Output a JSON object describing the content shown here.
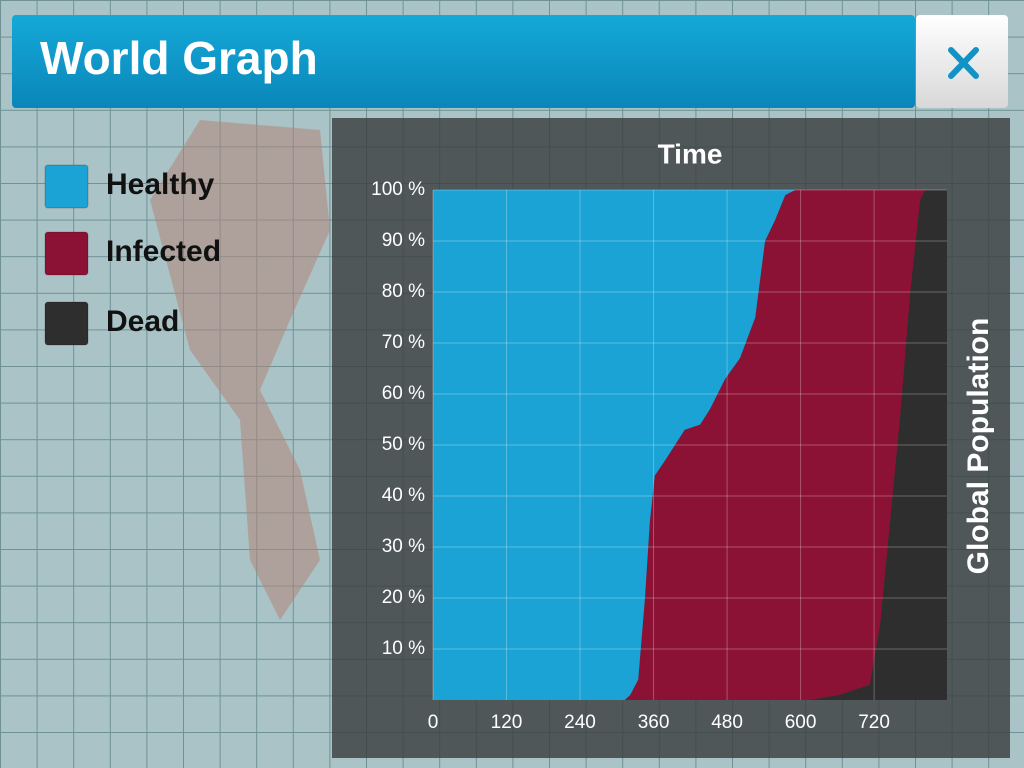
{
  "header": {
    "title": "World Graph"
  },
  "chart_data": {
    "type": "area",
    "stacked": true,
    "x_label": "Time",
    "y_label": "Global Population",
    "x": [
      0,
      313,
      322,
      335,
      346,
      354,
      362,
      379,
      395,
      411,
      436,
      452,
      477,
      501,
      526,
      542,
      558,
      575,
      591,
      615,
      664,
      713,
      730,
      746,
      762,
      779,
      795,
      803,
      839
    ],
    "series": [
      {
        "name": "Dead",
        "color": "#2e2e2e",
        "values": [
          0,
          0,
          0,
          0,
          0,
          0,
          0,
          0,
          0,
          0,
          0,
          0,
          0,
          0,
          0,
          0,
          0,
          0,
          0,
          0,
          1,
          3,
          15,
          35,
          55,
          80,
          98,
          100,
          100
        ]
      },
      {
        "name": "Infected",
        "color": "#8b1234",
        "values": [
          0,
          0,
          1,
          4,
          20,
          35,
          44,
          47,
          50,
          53,
          54,
          57,
          63,
          67,
          75,
          90,
          94,
          99,
          100,
          100,
          99,
          97,
          85,
          65,
          45,
          20,
          2,
          0,
          0
        ]
      },
      {
        "name": "Healthy",
        "color": "#1aa3d4",
        "values": [
          100,
          100,
          99,
          96,
          80,
          65,
          56,
          53,
          50,
          47,
          46,
          43,
          37,
          33,
          25,
          10,
          6,
          1,
          0,
          0,
          0,
          0,
          0,
          0,
          0,
          0,
          0,
          0,
          0
        ]
      }
    ],
    "legend_order": [
      "Healthy",
      "Infected",
      "Dead"
    ],
    "xlim": [
      0,
      839
    ],
    "xticks": [
      0,
      120,
      240,
      360,
      480,
      600,
      720
    ],
    "ylim": [
      0,
      100
    ],
    "yticks": [
      {
        "value": 10,
        "label": "10 %"
      },
      {
        "value": 20,
        "label": "20 %"
      },
      {
        "value": 30,
        "label": "30 %"
      },
      {
        "value": 40,
        "label": "40 %"
      },
      {
        "value": 50,
        "label": "50 %"
      },
      {
        "value": 60,
        "label": "60 %"
      },
      {
        "value": 70,
        "label": "70 %"
      },
      {
        "value": 80,
        "label": "80 %"
      },
      {
        "value": 90,
        "label": "90 %"
      },
      {
        "value": 100,
        "label": "100 %"
      }
    ],
    "grid": true
  }
}
